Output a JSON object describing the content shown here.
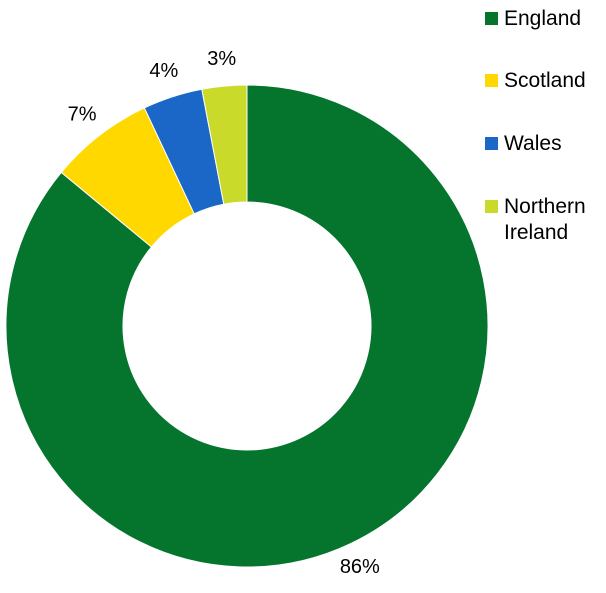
{
  "chart_data": {
    "type": "pie",
    "variant": "donut",
    "categories": [
      "England",
      "Scotland",
      "Wales",
      "Northern Ireland"
    ],
    "values": [
      86,
      7,
      4,
      3
    ],
    "unit": "%",
    "data_labels": [
      "86%",
      "7%",
      "4%",
      "3%"
    ],
    "colors": [
      "#05752e",
      "#ffd800",
      "#1a67c8",
      "#c9da2a"
    ],
    "legend_position": "right"
  },
  "legend": {
    "items": [
      {
        "label": "England",
        "color": "#05752e"
      },
      {
        "label": "Scotland",
        "color": "#ffd800"
      },
      {
        "label": "Wales",
        "color": "#1a67c8"
      },
      {
        "label": "Northern Ireland",
        "color": "#c9da2a"
      }
    ]
  }
}
